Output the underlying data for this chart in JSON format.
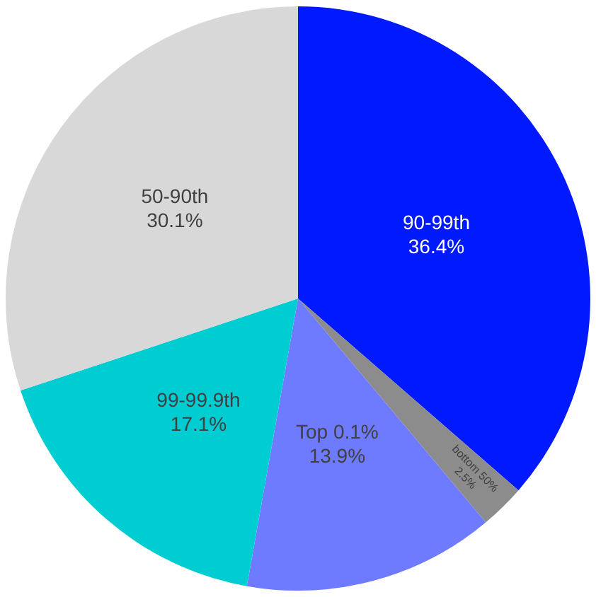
{
  "chart_data": {
    "type": "pie",
    "categories": [
      "90-99th",
      "bottom 50%",
      "Top 0.1%",
      "99-99.9th",
      "50-90th"
    ],
    "values": [
      36.4,
      2.5,
      13.9,
      17.1,
      30.1
    ],
    "value_labels": [
      "36.4%",
      "2.5%",
      "13.9%",
      "17.1%",
      "30.1%"
    ],
    "colors": [
      "#0019ff",
      "#8c8c8c",
      "#6f7bff",
      "#00cdd2",
      "#d8d8d8"
    ],
    "legend": false
  }
}
